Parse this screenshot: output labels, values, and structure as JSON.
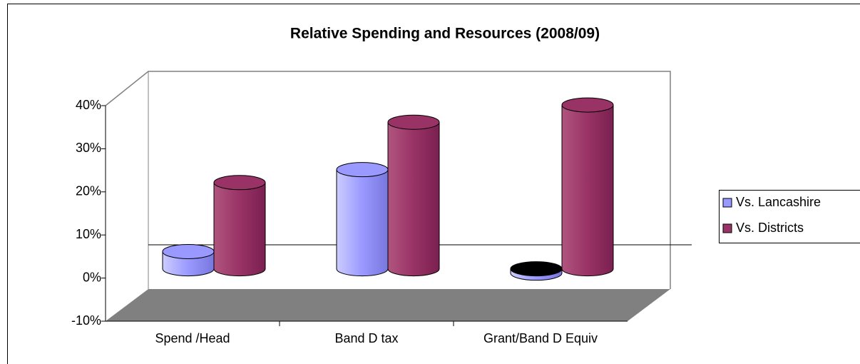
{
  "chart_data": {
    "type": "bar3d-cylinder",
    "title": "Relative Spending and Resources (2008/09)",
    "categories": [
      "Spend /Head",
      "Band D tax",
      "Grant/Band D Equiv"
    ],
    "series": [
      {
        "name": "Vs. Lancashire",
        "color": "#9999ff",
        "values": [
          4,
          23,
          -1
        ]
      },
      {
        "name": "Vs. Districts",
        "color": "#993366",
        "values": [
          20,
          34,
          38
        ]
      }
    ],
    "ylim": [
      -10,
      40
    ],
    "yticks": [
      {
        "value": -10,
        "label": "-10%"
      },
      {
        "value": 0,
        "label": "0%"
      },
      {
        "value": 10,
        "label": "10%"
      },
      {
        "value": 20,
        "label": "20%"
      },
      {
        "value": 30,
        "label": "30%"
      },
      {
        "value": 40,
        "label": "40%"
      }
    ],
    "legend": "right"
  }
}
